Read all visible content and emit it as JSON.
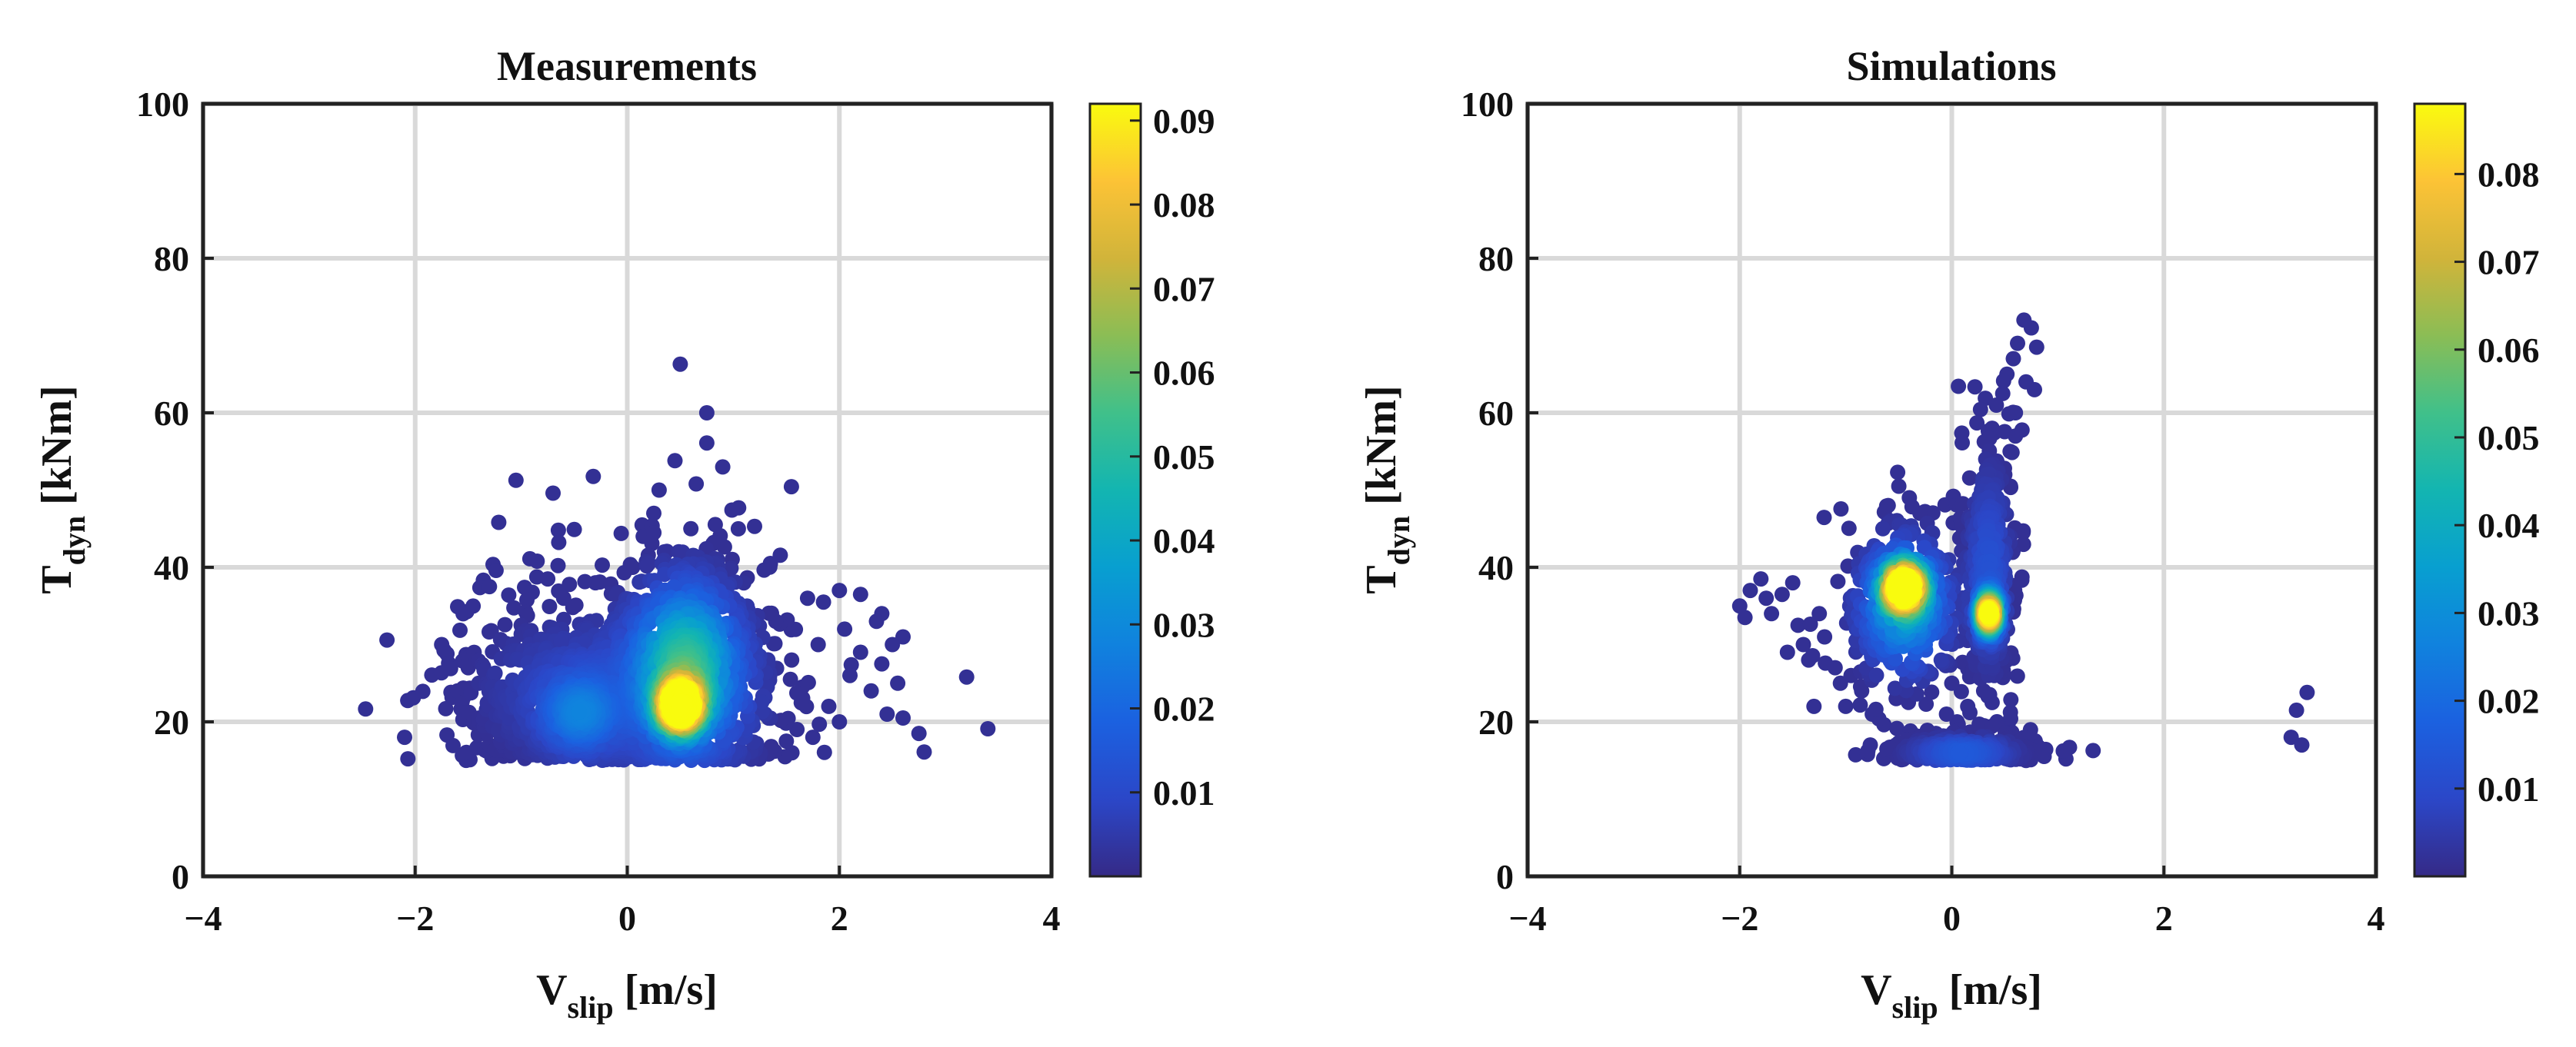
{
  "chart_data": [
    {
      "type": "scatter",
      "title": "Measurements",
      "xlabel": {
        "main": "V",
        "sub": "slip",
        "unit": " [m/s]"
      },
      "ylabel": {
        "main": "T",
        "sub": "dyn",
        "unit": " [kNm]"
      },
      "xlim": [
        -4,
        4
      ],
      "ylim": [
        0,
        100
      ],
      "xticks": [
        -4,
        -2,
        0,
        2,
        4
      ],
      "yticks": [
        0,
        20,
        40,
        60,
        80,
        100
      ],
      "xtick_labels": [
        "−4",
        "−2",
        "0",
        "2",
        "4"
      ],
      "ytick_labels": [
        "0",
        "20",
        "40",
        "60",
        "80",
        "100"
      ],
      "grid": true,
      "colorbar": {
        "colormap": "parula",
        "range": [
          0.0,
          0.092
        ],
        "ticks": [
          0.01,
          0.02,
          0.03,
          0.04,
          0.05,
          0.06,
          0.07,
          0.08,
          0.09
        ],
        "tick_labels": [
          "0.01",
          "0.02",
          "0.03",
          "0.04",
          "0.05",
          "0.06",
          "0.07",
          "0.08",
          "0.09"
        ]
      },
      "density_clusters": [
        {
          "x": 0.5,
          "y": 22,
          "sx": 0.13,
          "sy": 2.2,
          "peak": 0.09
        },
        {
          "x": 0.55,
          "y": 28,
          "sx": 0.28,
          "sy": 6.0,
          "peak": 0.04
        },
        {
          "x": 0.55,
          "y": 24,
          "sx": 0.45,
          "sy": 7.0,
          "peak": 0.015
        },
        {
          "x": -0.45,
          "y": 21,
          "sx": 0.22,
          "sy": 3.0,
          "peak": 0.02
        },
        {
          "x": -0.55,
          "y": 24,
          "sx": 0.55,
          "sy": 6.0,
          "peak": 0.008
        }
      ],
      "points": [
        [
          0.5,
          66.3
        ],
        [
          0.75,
          60.0
        ],
        [
          0.75,
          56.1
        ],
        [
          0.9,
          53.0
        ],
        [
          0.45,
          53.8
        ],
        [
          0.3,
          50.0
        ],
        [
          0.65,
          50.8
        ],
        [
          1.05,
          47.7
        ],
        [
          1.2,
          45.3
        ],
        [
          0.25,
          47.0
        ],
        [
          -0.7,
          49.6
        ],
        [
          -0.65,
          44.8
        ],
        [
          -0.5,
          44.9
        ],
        [
          -0.85,
          40.8
        ],
        [
          -0.75,
          38.5
        ],
        [
          -0.3,
          38.0
        ],
        [
          -0.15,
          36.6
        ],
        [
          -1.3,
          37.5
        ],
        [
          -1.0,
          32.5
        ],
        [
          -1.1,
          28.0
        ],
        [
          -1.5,
          27.0
        ],
        [
          -1.7,
          28.8
        ],
        [
          -1.75,
          30.0
        ],
        [
          -1.4,
          25.0
        ],
        [
          -1.6,
          24.0
        ],
        [
          -1.3,
          22.0
        ],
        [
          -1.55,
          20.3
        ],
        [
          -1.7,
          18.3
        ],
        [
          -1.35,
          19.5
        ],
        [
          -1.3,
          17.0
        ],
        [
          -2.1,
          18.0
        ],
        [
          -1.2,
          23.5
        ],
        [
          -0.95,
          18.5
        ],
        [
          -0.2,
          31.5
        ],
        [
          -0.35,
          33.0
        ],
        [
          -0.6,
          36.0
        ],
        [
          -0.9,
          25.0
        ],
        [
          -0.05,
          27.0
        ],
        [
          -0.25,
          17.0
        ],
        [
          0.05,
          18.0
        ],
        [
          0.1,
          16.2
        ],
        [
          0.15,
          22.0
        ],
        [
          0.2,
          30.0
        ],
        [
          0.1,
          34.0
        ],
        [
          0.05,
          40.0
        ],
        [
          0.15,
          44.0
        ],
        [
          0.35,
          42.0
        ],
        [
          0.6,
          45.0
        ],
        [
          0.85,
          41.0
        ],
        [
          1.0,
          36.0
        ],
        [
          1.15,
          31.0
        ],
        [
          1.2,
          26.0
        ],
        [
          1.3,
          21.0
        ],
        [
          1.1,
          18.0
        ],
        [
          1.4,
          33.0
        ],
        [
          1.55,
          28.0
        ],
        [
          1.65,
          24.5
        ],
        [
          1.7,
          36.0
        ],
        [
          1.85,
          35.5
        ],
        [
          1.8,
          30.0
        ],
        [
          1.9,
          22.0
        ],
        [
          2.0,
          37.0
        ],
        [
          2.05,
          32.0
        ],
        [
          2.1,
          26.0
        ],
        [
          2.2,
          29.0
        ],
        [
          2.3,
          24.0
        ],
        [
          2.35,
          33.0
        ],
        [
          2.4,
          27.5
        ],
        [
          2.45,
          21.0
        ],
        [
          2.5,
          30.0
        ],
        [
          2.55,
          25.0
        ],
        [
          2.6,
          20.5
        ],
        [
          2.4,
          34.0
        ],
        [
          2.2,
          36.5
        ],
        [
          1.6,
          19.0
        ],
        [
          2.75,
          18.5
        ],
        [
          2.8,
          16.1
        ],
        [
          3.2,
          25.8
        ],
        [
          3.4,
          19.1
        ],
        [
          2.0,
          20.0
        ],
        [
          1.5,
          17.5
        ],
        [
          0.95,
          16.5
        ],
        [
          0.4,
          15.8
        ],
        [
          -0.5,
          15.8
        ],
        [
          -0.8,
          16.5
        ],
        [
          -1.0,
          21.0
        ],
        [
          0.8,
          38.0
        ],
        [
          0.7,
          33.0
        ],
        [
          1.35,
          40.5
        ],
        [
          0.3,
          36.0
        ],
        [
          -0.1,
          20.0
        ],
        [
          1.25,
          28.5
        ],
        [
          1.75,
          18.0
        ],
        [
          2.6,
          31.0
        ]
      ]
    },
    {
      "type": "scatter",
      "title": "Simulations",
      "xlabel": {
        "main": "V",
        "sub": "slip",
        "unit": " [m/s]"
      },
      "ylabel": {
        "main": "T",
        "sub": "dyn",
        "unit": " [kNm]"
      },
      "xlim": [
        -4,
        4
      ],
      "ylim": [
        0,
        100
      ],
      "xticks": [
        -4,
        -2,
        0,
        2,
        4
      ],
      "yticks": [
        0,
        20,
        40,
        60,
        80,
        100
      ],
      "xtick_labels": [
        "−4",
        "−2",
        "0",
        "2",
        "4"
      ],
      "ytick_labels": [
        "0",
        "20",
        "40",
        "60",
        "80",
        "100"
      ],
      "grid": true,
      "colorbar": {
        "colormap": "parula",
        "range": [
          0.0,
          0.088
        ],
        "ticks": [
          0.01,
          0.02,
          0.03,
          0.04,
          0.05,
          0.06,
          0.07,
          0.08
        ],
        "tick_labels": [
          "0.01",
          "0.02",
          "0.03",
          "0.04",
          "0.05",
          "0.06",
          "0.07",
          "0.08"
        ]
      },
      "density_clusters": [
        {
          "x": -0.45,
          "y": 37.5,
          "sx": 0.12,
          "sy": 2.0,
          "peak": 0.085
        },
        {
          "x": 0.35,
          "y": 34.0,
          "sx": 0.06,
          "sy": 1.6,
          "peak": 0.085
        },
        {
          "x": -0.45,
          "y": 35.0,
          "sx": 0.25,
          "sy": 5.0,
          "peak": 0.035
        },
        {
          "x": 0.1,
          "y": 16.0,
          "sx": 0.3,
          "sy": 1.2,
          "peak": 0.015
        },
        {
          "x": 0.35,
          "y": 40.0,
          "sx": 0.12,
          "sy": 8.0,
          "peak": 0.012
        }
      ],
      "points": [
        [
          -2.0,
          35.0
        ],
        [
          -1.95,
          33.5
        ],
        [
          -1.9,
          37.0
        ],
        [
          -1.8,
          38.5
        ],
        [
          -1.75,
          36.0
        ],
        [
          -1.7,
          34.0
        ],
        [
          -1.6,
          36.5
        ],
        [
          -1.5,
          38.0
        ],
        [
          -1.45,
          32.5
        ],
        [
          -1.4,
          30.0
        ],
        [
          -1.35,
          28.0
        ],
        [
          -1.25,
          34.0
        ],
        [
          -1.2,
          31.0
        ],
        [
          -1.1,
          27.0
        ],
        [
          -1.05,
          25.0
        ],
        [
          -1.0,
          22.0
        ],
        [
          -0.95,
          26.0
        ],
        [
          -0.85,
          24.0
        ],
        [
          -0.75,
          21.0
        ],
        [
          -0.9,
          32.0
        ],
        [
          -0.8,
          38.0
        ],
        [
          -0.7,
          42.0
        ],
        [
          -0.65,
          45.0
        ],
        [
          -0.6,
          48.0
        ],
        [
          -0.5,
          50.5
        ],
        [
          -0.4,
          49.0
        ],
        [
          -0.3,
          47.0
        ],
        [
          -0.2,
          43.0
        ],
        [
          -0.1,
          40.0
        ],
        [
          -0.25,
          30.0
        ],
        [
          -0.1,
          28.0
        ],
        [
          0.0,
          25.0
        ],
        [
          -0.05,
          21.0
        ],
        [
          -0.15,
          18.5
        ],
        [
          0.05,
          20.0
        ],
        [
          0.15,
          22.0
        ],
        [
          0.2,
          26.0
        ],
        [
          0.25,
          30.0
        ],
        [
          0.2,
          40.0
        ],
        [
          0.22,
          45.0
        ],
        [
          0.28,
          50.0
        ],
        [
          0.32,
          54.0
        ],
        [
          0.38,
          58.0
        ],
        [
          0.42,
          61.0
        ],
        [
          0.48,
          62.5
        ],
        [
          0.52,
          65.0
        ],
        [
          0.58,
          67.0
        ],
        [
          0.62,
          69.0
        ],
        [
          0.68,
          72.0
        ],
        [
          0.75,
          71.0
        ],
        [
          0.8,
          68.5
        ],
        [
          0.78,
          63.0
        ],
        [
          0.7,
          64.0
        ],
        [
          0.6,
          60.0
        ],
        [
          0.55,
          55.0
        ],
        [
          0.5,
          52.0
        ],
        [
          0.45,
          47.0
        ],
        [
          0.42,
          42.0
        ],
        [
          0.4,
          36.0
        ],
        [
          0.45,
          30.0
        ],
        [
          0.4,
          26.0
        ],
        [
          0.38,
          22.5
        ],
        [
          0.3,
          24.0
        ],
        [
          0.5,
          15.5
        ],
        [
          0.65,
          15.2
        ],
        [
          0.7,
          15.0
        ],
        [
          -0.1,
          15.5
        ],
        [
          0.0,
          17.0
        ],
        [
          3.2,
          18.0
        ],
        [
          3.25,
          21.5
        ],
        [
          3.3,
          17.0
        ],
        [
          3.35,
          23.8
        ],
        [
          -1.55,
          29.0
        ],
        [
          -1.3,
          22.0
        ],
        [
          -0.55,
          30.5
        ],
        [
          0.1,
          35.0
        ],
        [
          -0.35,
          26.0
        ],
        [
          0.55,
          44.0
        ],
        [
          0.6,
          57.0
        ],
        [
          0.5,
          38.0
        ]
      ]
    }
  ]
}
